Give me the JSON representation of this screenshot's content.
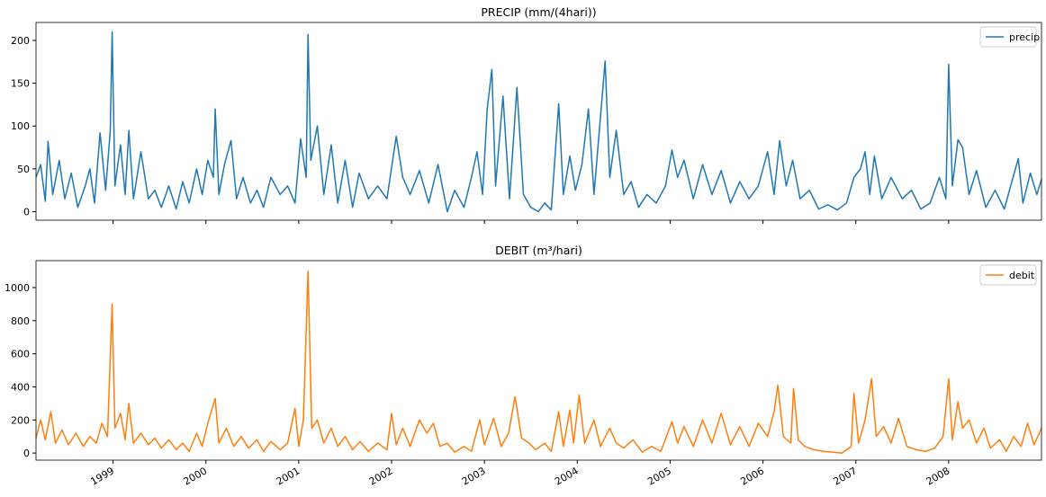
{
  "chart_data": [
    {
      "type": "line",
      "title": "PRECIP (mm/(4hari))",
      "legend": "upper right",
      "x": [
        1998.17,
        1998.22,
        1998.27,
        1998.3,
        1998.35,
        1998.42,
        1998.48,
        1998.55,
        1998.62,
        1998.7,
        1998.75,
        1998.8,
        1998.86,
        1998.92,
        1998.97,
        1998.99,
        1999.02,
        1999.08,
        1999.13,
        1999.17,
        1999.22,
        1999.3,
        1999.38,
        1999.45,
        1999.52,
        1999.6,
        1999.68,
        1999.75,
        1999.82,
        1999.9,
        1999.96,
        2000.02,
        2000.08,
        2000.1,
        2000.14,
        2000.2,
        2000.27,
        2000.33,
        2000.4,
        2000.48,
        2000.55,
        2000.62,
        2000.7,
        2000.8,
        2000.88,
        2000.96,
        2001.02,
        2001.08,
        2001.1,
        2001.13,
        2001.2,
        2001.27,
        2001.35,
        2001.42,
        2001.5,
        2001.58,
        2001.65,
        2001.75,
        2001.85,
        2001.95,
        2002.05,
        2002.12,
        2002.2,
        2002.3,
        2002.4,
        2002.5,
        2002.6,
        2002.68,
        2002.78,
        2002.86,
        2002.92,
        2002.98,
        2003.03,
        2003.08,
        2003.12,
        2003.2,
        2003.27,
        2003.35,
        2003.42,
        2003.5,
        2003.58,
        2003.65,
        2003.72,
        2003.8,
        2003.85,
        2003.92,
        2003.98,
        2004.05,
        2004.12,
        2004.18,
        2004.3,
        2004.35,
        2004.42,
        2004.5,
        2004.58,
        2004.66,
        2004.75,
        2004.85,
        2004.95,
        2005.02,
        2005.08,
        2005.15,
        2005.25,
        2005.35,
        2005.45,
        2005.55,
        2005.65,
        2005.75,
        2005.85,
        2005.95,
        2006.05,
        2006.12,
        2006.18,
        2006.25,
        2006.32,
        2006.4,
        2006.5,
        2006.6,
        2006.7,
        2006.8,
        2006.9,
        2006.98,
        2007.05,
        2007.1,
        2007.15,
        2007.2,
        2007.28,
        2007.38,
        2007.5,
        2007.6,
        2007.7,
        2007.8,
        2007.9,
        2007.97,
        2008.0,
        2008.04,
        2008.1,
        2008.15,
        2008.22,
        2008.3,
        2008.4,
        2008.5,
        2008.6,
        2008.68,
        2008.75,
        2008.8,
        2008.88,
        2008.95,
        2009.0
      ],
      "series": [
        {
          "name": "precip",
          "color": "#1f77b4",
          "values": [
            40,
            55,
            12,
            82,
            20,
            60,
            15,
            45,
            5,
            30,
            50,
            10,
            92,
            25,
            95,
            210,
            30,
            78,
            20,
            95,
            15,
            70,
            15,
            25,
            5,
            30,
            3,
            35,
            10,
            50,
            20,
            60,
            40,
            120,
            20,
            55,
            83,
            15,
            40,
            10,
            25,
            5,
            40,
            20,
            30,
            10,
            85,
            40,
            207,
            60,
            100,
            20,
            78,
            10,
            60,
            5,
            45,
            15,
            30,
            15,
            88,
            40,
            20,
            48,
            10,
            55,
            0,
            25,
            5,
            40,
            70,
            20,
            120,
            166,
            30,
            135,
            15,
            145,
            20,
            5,
            0,
            10,
            2,
            126,
            20,
            65,
            25,
            55,
            120,
            20,
            176,
            40,
            95,
            20,
            35,
            5,
            20,
            10,
            30,
            72,
            40,
            60,
            15,
            55,
            20,
            48,
            10,
            35,
            15,
            30,
            70,
            20,
            83,
            30,
            60,
            15,
            25,
            3,
            8,
            2,
            10,
            40,
            50,
            70,
            20,
            65,
            15,
            40,
            15,
            25,
            3,
            10,
            40,
            15,
            172,
            30,
            84,
            75,
            20,
            48,
            5,
            25,
            3,
            35,
            62,
            10,
            45,
            20,
            38
          ]
        }
      ],
      "xlim": [
        1998.17,
        2009.0
      ],
      "ylim": [
        -10,
        221
      ],
      "yticks": [
        0,
        50,
        100,
        150,
        200
      ]
    },
    {
      "type": "line",
      "title": "DEBIT (m³/hari)",
      "legend": "upper right",
      "x": [
        1998.17,
        1998.22,
        1998.27,
        1998.33,
        1998.38,
        1998.45,
        1998.52,
        1998.6,
        1998.68,
        1998.75,
        1998.82,
        1998.88,
        1998.94,
        1998.99,
        1999.02,
        1999.08,
        1999.13,
        1999.17,
        1999.22,
        1999.3,
        1999.38,
        1999.45,
        1999.52,
        1999.6,
        1999.68,
        1999.75,
        1999.82,
        1999.9,
        1999.96,
        2000.02,
        2000.1,
        2000.14,
        2000.22,
        2000.3,
        2000.38,
        2000.46,
        2000.55,
        2000.62,
        2000.7,
        2000.8,
        2000.88,
        2000.96,
        2001.0,
        2001.05,
        2001.1,
        2001.14,
        2001.2,
        2001.27,
        2001.35,
        2001.42,
        2001.5,
        2001.58,
        2001.66,
        2001.75,
        2001.85,
        2001.95,
        2002.0,
        2002.05,
        2002.12,
        2002.2,
        2002.3,
        2002.38,
        2002.45,
        2002.52,
        2002.6,
        2002.68,
        2002.78,
        2002.86,
        2002.95,
        2003.0,
        2003.1,
        2003.18,
        2003.26,
        2003.33,
        2003.4,
        2003.48,
        2003.55,
        2003.65,
        2003.72,
        2003.8,
        2003.85,
        2003.92,
        2003.96,
        2004.02,
        2004.08,
        2004.18,
        2004.25,
        2004.35,
        2004.42,
        2004.5,
        2004.6,
        2004.7,
        2004.8,
        2004.9,
        2005.02,
        2005.08,
        2005.15,
        2005.25,
        2005.35,
        2005.45,
        2005.55,
        2005.65,
        2005.75,
        2005.85,
        2005.95,
        2006.05,
        2006.12,
        2006.16,
        2006.22,
        2006.3,
        2006.33,
        2006.38,
        2006.45,
        2006.55,
        2006.65,
        2006.75,
        2006.85,
        2006.95,
        2006.98,
        2007.03,
        2007.1,
        2007.17,
        2007.22,
        2007.3,
        2007.38,
        2007.46,
        2007.55,
        2007.65,
        2007.75,
        2007.85,
        2007.94,
        2008.0,
        2008.04,
        2008.1,
        2008.15,
        2008.22,
        2008.3,
        2008.38,
        2008.45,
        2008.55,
        2008.62,
        2008.7,
        2008.78,
        2008.85,
        2008.92,
        2009.0
      ],
      "series": [
        {
          "name": "debit",
          "color": "#ff7f0e",
          "values": [
            90,
            200,
            80,
            250,
            60,
            140,
            50,
            120,
            40,
            100,
            60,
            180,
            100,
            900,
            150,
            240,
            80,
            300,
            60,
            120,
            50,
            90,
            30,
            80,
            20,
            60,
            10,
            120,
            40,
            180,
            330,
            60,
            150,
            40,
            100,
            30,
            80,
            10,
            70,
            20,
            60,
            270,
            40,
            200,
            1100,
            150,
            200,
            60,
            150,
            40,
            100,
            20,
            70,
            10,
            60,
            20,
            240,
            50,
            150,
            40,
            200,
            120,
            180,
            40,
            60,
            5,
            40,
            10,
            200,
            50,
            210,
            40,
            120,
            340,
            90,
            60,
            20,
            60,
            10,
            250,
            40,
            260,
            60,
            350,
            60,
            200,
            40,
            150,
            60,
            30,
            80,
            5,
            40,
            10,
            190,
            60,
            160,
            40,
            200,
            60,
            240,
            50,
            160,
            40,
            180,
            100,
            250,
            410,
            100,
            60,
            390,
            80,
            40,
            20,
            10,
            5,
            0,
            40,
            360,
            60,
            200,
            450,
            100,
            160,
            60,
            210,
            40,
            20,
            10,
            30,
            100,
            450,
            80,
            310,
            150,
            200,
            60,
            150,
            30,
            80,
            10,
            100,
            40,
            180,
            50,
            150
          ]
        }
      ],
      "xlim": [
        1998.17,
        2009.0
      ],
      "ylim": [
        -43,
        1163
      ],
      "yticks": [
        0,
        200,
        400,
        600,
        800,
        1000
      ],
      "xticks": [
        1999,
        2000,
        2001,
        2002,
        2003,
        2004,
        2005,
        2006,
        2007,
        2008
      ]
    }
  ]
}
